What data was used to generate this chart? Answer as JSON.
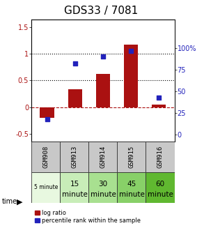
{
  "title": "GDS33 / 7081",
  "samples": [
    "GSM908",
    "GSM913",
    "GSM914",
    "GSM915",
    "GSM916"
  ],
  "time_labels_row1": [
    "5 minute",
    "15",
    "30",
    "45",
    "60"
  ],
  "time_labels_row2": [
    "",
    "minute",
    "minute",
    "minute",
    "minute"
  ],
  "time_colors": [
    "#e8f8e0",
    "#c8edb8",
    "#a8e090",
    "#88d068",
    "#60b830"
  ],
  "log_ratio": [
    -0.2,
    0.33,
    0.63,
    1.18,
    0.05
  ],
  "percentile_rank": [
    18,
    82,
    90,
    97,
    43
  ],
  "bar_color": "#aa1111",
  "dot_color": "#2222bb",
  "ylim_left": [
    -0.65,
    1.65
  ],
  "ylim_right": [
    -8.125,
    133.125
  ],
  "yticks_left": [
    -0.5,
    0.0,
    0.5,
    1.0,
    1.5
  ],
  "yticks_right": [
    0,
    25,
    50,
    75,
    100
  ],
  "hline_y": [
    0.5,
    1.0
  ],
  "zero_line_y": 0,
  "title_fontsize": 11,
  "bar_width": 0.5,
  "dot_size": 20,
  "gsm_fontsize": 6.5,
  "time_fontsize_small": 5.5,
  "time_fontsize_large": 7.5,
  "legend_fontsize": 6
}
